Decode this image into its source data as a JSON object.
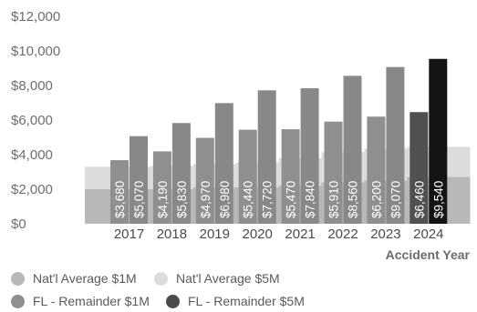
{
  "chart_data": {
    "type": "bar",
    "categories": [
      "2017",
      "2018",
      "2019",
      "2020",
      "2021",
      "2022",
      "2023",
      "2024"
    ],
    "series": [
      {
        "name": "FL - Remainder $1M",
        "values": [
          3680,
          4190,
          4970,
          5440,
          5470,
          5910,
          6200,
          6460
        ],
        "labels": [
          "$3,680",
          "$4,190",
          "$4,970",
          "$5,440",
          "$5,470",
          "$5,910",
          "$6,200",
          "$6,460"
        ]
      },
      {
        "name": "FL - Remainder $5M",
        "values": [
          5070,
          5830,
          6980,
          7720,
          7840,
          8560,
          9070,
          9540
        ],
        "labels": [
          "$5,070",
          "$5,830",
          "$6,980",
          "$7,720",
          "$7,840",
          "$8,560",
          "$9,070",
          "$9,540"
        ]
      }
    ],
    "background_series": [
      {
        "name": "Nat'l Average $1M",
        "values": [
          2000,
          2000,
          2100,
          2100,
          2200,
          2400,
          2500,
          2700
        ]
      },
      {
        "name": "Nat'l Average $5M",
        "values": [
          3300,
          3350,
          3450,
          3550,
          3800,
          4150,
          4350,
          4450
        ]
      }
    ],
    "yticks": [
      "$0",
      "$2,000",
      "$4,000",
      "$6,000",
      "$8,000",
      "$10,000",
      "$12,000"
    ],
    "ylim": [
      0,
      12000
    ],
    "xlabel": "Accident Year",
    "ylabel": "",
    "title": "",
    "grid": false,
    "legend_position": "bottom"
  },
  "legend": [
    {
      "label": "Nat'l Average $1M",
      "color": "#b8b8b8"
    },
    {
      "label": "Nat'l Average $5M",
      "color": "#dcdcdc"
    },
    {
      "label": "FL - Remainder $1M",
      "color": "#8f8f8f"
    },
    {
      "label": "FL - Remainder $5M",
      "color": "#4a4a4a"
    }
  ],
  "colors": {
    "fl_1m": "#8f8f8f",
    "fl_5m": "#888888",
    "fl_1m_highlight": "#505050",
    "fl_5m_highlight": "#141414",
    "nat_1m": "#b8b8b8",
    "nat_5m": "#dcdcdc"
  }
}
